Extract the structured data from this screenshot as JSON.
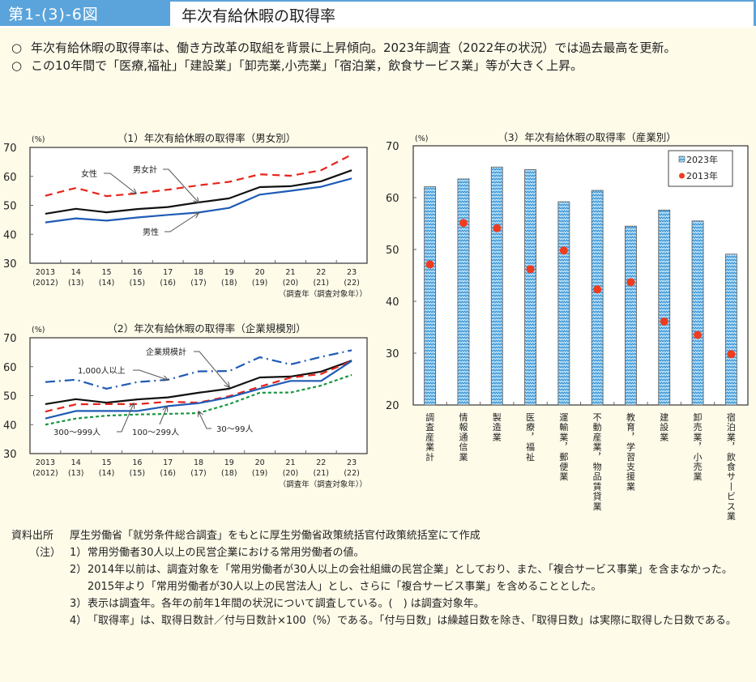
{
  "header": {
    "figure_number": "第1-(3)-6図",
    "title": "年次有給休暇の取得率"
  },
  "summary": [
    "年次有給休暇の取得率は、働き方改革の取組を背景に上昇傾向。2023年調査（2022年の状況）では過去最高を更新。",
    "この10年間で「医療,福祉」「建設業」「卸売業,小売業」「宿泊業，飲食サービス業」等が大きく上昇。"
  ],
  "summary_mark": "○",
  "chart_data": [
    {
      "type": "line",
      "title": "（1）年次有給休暇の取得率（男女別）",
      "ylabel": "(%)",
      "xlabel": "（調査年（調査対象年））",
      "ylim": [
        30,
        70
      ],
      "yticks": [
        30,
        40,
        50,
        60,
        70
      ],
      "x": [
        "2013",
        "14",
        "15",
        "16",
        "17",
        "18",
        "19",
        "20",
        "21",
        "22",
        "23"
      ],
      "x_sub": [
        "(2012)",
        "(13)",
        "(14)",
        "(15)",
        "(16)",
        "(17)",
        "(18)",
        "(19)",
        "(20)",
        "(21)",
        "(22)"
      ],
      "grid": false,
      "series": [
        {
          "name": "女性",
          "color": "#e8231b",
          "style": "dashed",
          "values": [
            53.3,
            56.0,
            53.2,
            54.1,
            55.4,
            56.9,
            58.1,
            60.7,
            60.2,
            62.1,
            67.5
          ]
        },
        {
          "name": "男女計",
          "color": "#111111",
          "style": "solid",
          "values": [
            47.1,
            48.8,
            47.6,
            48.7,
            49.4,
            51.0,
            52.4,
            56.3,
            56.6,
            58.3,
            62.1
          ]
        },
        {
          "name": "男性",
          "color": "#1f5bb5",
          "style": "solid",
          "values": [
            44.1,
            45.5,
            44.7,
            45.8,
            46.7,
            47.5,
            49.1,
            53.7,
            55.0,
            56.4,
            59.3
          ]
        }
      ],
      "annotations": [
        "女性",
        "男女計",
        "男性"
      ]
    },
    {
      "type": "line",
      "title": "（2）年次有給休暇の取得率（企業規模別）",
      "ylabel": "(%)",
      "xlabel": "（調査年（調査対象年））",
      "ylim": [
        30,
        70
      ],
      "yticks": [
        30,
        40,
        50,
        60,
        70
      ],
      "x": [
        "2013",
        "14",
        "15",
        "16",
        "17",
        "18",
        "19",
        "20",
        "21",
        "22",
        "23"
      ],
      "x_sub": [
        "(2012)",
        "(13)",
        "(14)",
        "(15)",
        "(16)",
        "(17)",
        "(18)",
        "(19)",
        "(20)",
        "(21)",
        "(22)"
      ],
      "grid": false,
      "series": [
        {
          "name": "1,000人以上",
          "color": "#1f5bb5",
          "style": "dashdot",
          "values": [
            54.7,
            55.5,
            52.4,
            54.7,
            55.5,
            58.4,
            58.5,
            63.3,
            60.8,
            63.4,
            65.7
          ]
        },
        {
          "name": "企業規模計",
          "color": "#111111",
          "style": "solid",
          "values": [
            47.1,
            48.8,
            47.6,
            48.7,
            49.4,
            51.0,
            52.4,
            56.3,
            56.6,
            58.3,
            62.1
          ]
        },
        {
          "name": "300～999人",
          "color": "#e8231b",
          "style": "dashed",
          "values": [
            44.5,
            47.0,
            47.1,
            47.1,
            47.9,
            47.6,
            49.8,
            53.1,
            56.2,
            57.5,
            62.0
          ]
        },
        {
          "name": "100～299人",
          "color": "#1f5bb5",
          "style": "solid",
          "values": [
            42.1,
            44.7,
            44.7,
            44.7,
            46.4,
            47.4,
            49.4,
            52.4,
            55.1,
            55.1,
            62.0
          ]
        },
        {
          "name": "30～99人",
          "color": "#1a9641",
          "style": "dotted",
          "values": [
            40.0,
            42.1,
            43.1,
            43.5,
            43.7,
            44.0,
            47.1,
            51.0,
            51.1,
            53.5,
            57.2
          ]
        }
      ],
      "annotations": [
        "企業規模計",
        "1,000人以上",
        "300～999人",
        "100～299人",
        "30～99人"
      ]
    },
    {
      "type": "bar",
      "title": "（3）年次有給休暇の取得率（産業別）",
      "ylabel": "(%)",
      "ylim": [
        20,
        70
      ],
      "yticks": [
        20,
        30,
        40,
        50,
        60,
        70
      ],
      "grid": false,
      "legend_position": "top-right",
      "categories": [
        "調査産業計",
        "情報通信業",
        "製造業",
        "医療，福祉",
        "運輸業，郵便業",
        "不動産業，物品賃貸業",
        "教育，学習支援業",
        "建設業",
        "卸売業，小売業",
        "宿泊業，飲食サービス業"
      ],
      "series": [
        {
          "name": "2023年",
          "type": "bar",
          "color": "#4aa3df",
          "values": [
            62.1,
            63.6,
            65.9,
            65.4,
            59.2,
            61.4,
            54.5,
            57.6,
            55.5,
            49.1
          ]
        },
        {
          "name": "2013年",
          "type": "point",
          "color": "#f03c1e",
          "values": [
            47.1,
            55.1,
            54.1,
            46.2,
            49.8,
            42.3,
            43.7,
            36.1,
            33.5,
            29.8
          ]
        }
      ]
    }
  ],
  "notes": {
    "source_label": "資料出所",
    "source_text": "厚生労働省「就労条件総合調査」をもとに厚生労働省政策統括官付政策統括室にて作成",
    "note_label": "（注）",
    "items": [
      {
        "num": "1）",
        "text": "常用労働者30人以上の民営企業における常用労働者の値。"
      },
      {
        "num": "2）",
        "text": "2014年以前は、調査対象を「常用労働者が30人以上の会社組織の民営企業」としており、また、「複合サービス事業」を含まなかった。2015年より「常用労働者が30人以上の民営法人」とし、さらに「複合サービス事業」を含めることとした。"
      },
      {
        "num": "3）",
        "text": "表示は調査年。各年の前年1年間の状況について調査している。(　) は調査対象年。"
      },
      {
        "num": "4）",
        "text": "「取得率」は、取得日数計／付与日数計×100（%）である。「付与日数」は繰越日数を除き、「取得日数」は実際に取得した日数である。"
      }
    ]
  }
}
